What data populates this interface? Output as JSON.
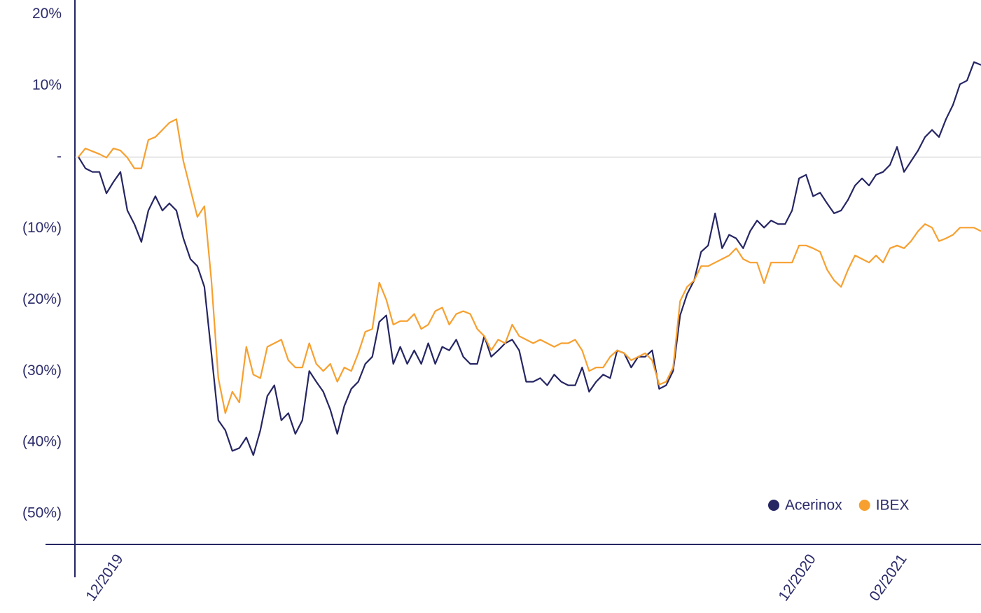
{
  "chart_data": {
    "type": "line",
    "categories": [
      null,
      null,
      null,
      null,
      null,
      null,
      "12/2019",
      null,
      null,
      null,
      null,
      null,
      null,
      null,
      null,
      null,
      null,
      null,
      null,
      null,
      null,
      null,
      null,
      null,
      null,
      null,
      null,
      null,
      null,
      null,
      null,
      null,
      null,
      null,
      null,
      null,
      null,
      null,
      null,
      null,
      null,
      null,
      null,
      null,
      null,
      null,
      null,
      null,
      null,
      null,
      null,
      null,
      null,
      null,
      null,
      null,
      null,
      null,
      null,
      null,
      null,
      null,
      null,
      null,
      null,
      null,
      null,
      null,
      null,
      null,
      null,
      null,
      null,
      null,
      null,
      null,
      null,
      null,
      null,
      null,
      null,
      null,
      null,
      null,
      null,
      null,
      null,
      null,
      null,
      null,
      null,
      null,
      null,
      null,
      null,
      null,
      null,
      null,
      null,
      null,
      null,
      null,
      null,
      null,
      null,
      "12/2020",
      null,
      null,
      null,
      null,
      null,
      null,
      null,
      null,
      null,
      null,
      null,
      null,
      "02/2021",
      null,
      null,
      null,
      null,
      null,
      null,
      null,
      null,
      null,
      null,
      null
    ],
    "series": [
      {
        "name": "Acerinox",
        "color": "#262664",
        "values": [
          0,
          -1.6,
          -2.1,
          -2.1,
          -5.1,
          -3.5,
          -2.1,
          -7.5,
          -9.4,
          -11.9,
          -7.5,
          -5.5,
          -7.5,
          -6.5,
          -7.5,
          -11.4,
          -14.3,
          -15.3,
          -18.2,
          -27.5,
          -36.9,
          -38.3,
          -41.2,
          -40.8,
          -39.3,
          -41.8,
          -38.3,
          -33.5,
          -32,
          -36.9,
          -35.9,
          -38.8,
          -36.9,
          -30,
          -31.5,
          -32.9,
          -35.4,
          -38.8,
          -34.9,
          -32.5,
          -31.5,
          -29,
          -28,
          -23.1,
          -22.2,
          -29,
          -26.6,
          -29,
          -27.1,
          -29,
          -26.1,
          -29,
          -26.6,
          -27.1,
          -25.6,
          -28,
          -29,
          -29,
          -25.1,
          -28,
          -27.1,
          -26.1,
          -25.6,
          -27.1,
          -31.5,
          -31.5,
          -31,
          -32,
          -30.5,
          -31.5,
          -32,
          -32,
          -29.5,
          -32.9,
          -31.5,
          -30.5,
          -31,
          -27.1,
          -27.5,
          -29.5,
          -28,
          -28,
          -27.1,
          -32.5,
          -32,
          -30,
          -22.2,
          -19.2,
          -17.3,
          -13.3,
          -12.4,
          -7.9,
          -12.8,
          -10.9,
          -11.4,
          -12.8,
          -10.4,
          -8.9,
          -9.9,
          -8.9,
          -9.4,
          -9.4,
          -7.5,
          -3,
          -2.5,
          -5.5,
          -5,
          -6.5,
          -7.9,
          -7.5,
          -6,
          -4,
          -3,
          -4,
          -2.5,
          -2.1,
          -1.1,
          1.4,
          -2.1,
          -0.6,
          0.9,
          2.8,
          3.8,
          2.8,
          5.3,
          7.3,
          10.2,
          10.7,
          13.3,
          12.9
        ]
      },
      {
        "name": "IBEX",
        "color": "#f7a030",
        "values": [
          0,
          1.2,
          0.8,
          0.4,
          -0.1,
          1.2,
          0.9,
          -0.1,
          -1.6,
          -1.6,
          2.4,
          2.8,
          3.8,
          4.8,
          5.3,
          -0.6,
          -4.5,
          -8.4,
          -6.9,
          -17.3,
          -31,
          -35.9,
          -32.9,
          -34.4,
          -26.6,
          -30.5,
          -31,
          -26.6,
          -26.1,
          -25.6,
          -28.5,
          -29.5,
          -29.5,
          -26.1,
          -29,
          -30,
          -29,
          -31.5,
          -29.5,
          -30,
          -27.5,
          -24.5,
          -24.1,
          -17.6,
          -20,
          -23.5,
          -23,
          -23,
          -22,
          -24.1,
          -23.5,
          -21.6,
          -21.1,
          -23.5,
          -22,
          -21.6,
          -22,
          -24.1,
          -25.1,
          -27.1,
          -25.6,
          -26.1,
          -23.5,
          -25.1,
          -25.6,
          -26.1,
          -25.6,
          -26.1,
          -26.6,
          -26.1,
          -26.1,
          -25.6,
          -27.1,
          -30,
          -29.5,
          -29.5,
          -28,
          -27.1,
          -27.5,
          -28.5,
          -28,
          -27.5,
          -28.5,
          -31.9,
          -31.5,
          -29.5,
          -20.2,
          -18.2,
          -17.3,
          -15.3,
          -15.3,
          -14.8,
          -14.3,
          -13.8,
          -12.8,
          -14.3,
          -14.8,
          -14.8,
          -17.7,
          -14.8,
          -14.8,
          -14.8,
          -14.8,
          -12.4,
          -12.4,
          -12.8,
          -13.3,
          -15.8,
          -17.3,
          -18.2,
          -15.8,
          -13.8,
          -14.3,
          -14.8,
          -13.8,
          -14.8,
          -12.8,
          -12.4,
          -12.8,
          -11.8,
          -10.4,
          -9.4,
          -9.9,
          -11.8,
          -11.4,
          -10.9,
          -9.9,
          -9.9,
          -9.9,
          -10.4
        ]
      }
    ],
    "ylim": [
      -54.3,
      22
    ],
    "yticks": [
      {
        "value": 20,
        "label": "20%"
      },
      {
        "value": 10,
        "label": "10%"
      },
      {
        "value": 0,
        "label": "-"
      },
      {
        "value": -10,
        "label": "(10%)"
      },
      {
        "value": -20,
        "label": "(20%)"
      },
      {
        "value": -30,
        "label": "(30%)"
      },
      {
        "value": -40,
        "label": "(40%)"
      },
      {
        "value": -50,
        "label": "(50%)"
      }
    ],
    "grid": false,
    "legend": "lower right"
  }
}
